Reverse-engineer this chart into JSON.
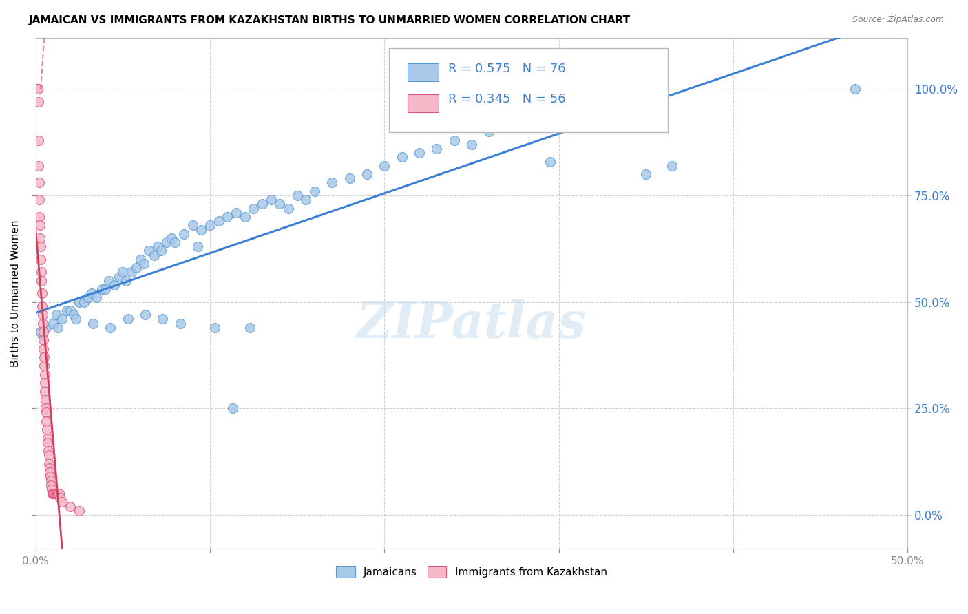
{
  "title": "JAMAICAN VS IMMIGRANTS FROM KAZAKHSTAN BIRTHS TO UNMARRIED WOMEN CORRELATION CHART",
  "source": "Source: ZipAtlas.com",
  "ylabel_left": "Births to Unmarried Women",
  "y_tick_values": [
    0,
    25,
    50,
    75,
    100
  ],
  "xlim": [
    0,
    50
  ],
  "ylim": [
    -8,
    112
  ],
  "blue_R": 0.575,
  "blue_N": 76,
  "pink_R": 0.345,
  "pink_N": 56,
  "legend_label_blue": "Jamaicans",
  "legend_label_pink": "Immigrants from Kazakhstan",
  "blue_dot_color": "#a8c8e8",
  "blue_dot_edge": "#5b9bd5",
  "pink_dot_color": "#f4b8c8",
  "pink_dot_edge": "#e05080",
  "blue_line_color": "#3a7fd5",
  "pink_line_color": "#d0405a",
  "right_tick_color": "#3a7fd5",
  "watermark": "ZIPatlas",
  "blue_x": [
    0.4,
    0.6,
    1.0,
    1.2,
    1.5,
    1.8,
    2.0,
    2.2,
    2.5,
    2.8,
    3.0,
    3.2,
    3.5,
    3.8,
    4.0,
    4.2,
    4.5,
    4.8,
    5.0,
    5.2,
    5.5,
    5.8,
    6.0,
    6.2,
    6.5,
    6.8,
    7.0,
    7.2,
    7.5,
    7.8,
    8.0,
    8.5,
    9.0,
    9.5,
    10.0,
    10.5,
    11.0,
    11.5,
    12.0,
    12.5,
    13.0,
    13.5,
    14.0,
    14.5,
    15.0,
    15.5,
    16.0,
    17.0,
    18.0,
    19.0,
    20.0,
    21.0,
    22.0,
    23.0,
    24.0,
    25.0,
    26.0,
    27.0,
    28.0,
    29.5,
    35.0,
    36.5,
    47.0,
    0.3,
    1.3,
    2.3,
    3.3,
    4.3,
    5.3,
    6.3,
    7.3,
    8.3,
    9.3,
    10.3,
    11.3,
    12.3
  ],
  "blue_y": [
    42,
    44,
    45,
    47,
    46,
    48,
    48,
    47,
    50,
    50,
    51,
    52,
    51,
    53,
    53,
    55,
    54,
    56,
    57,
    55,
    57,
    58,
    60,
    59,
    62,
    61,
    63,
    62,
    64,
    65,
    64,
    66,
    68,
    67,
    68,
    69,
    70,
    71,
    70,
    72,
    73,
    74,
    73,
    72,
    75,
    74,
    76,
    78,
    79,
    80,
    82,
    84,
    85,
    86,
    88,
    87,
    90,
    91,
    92,
    83,
    80,
    82,
    100,
    43,
    44,
    46,
    45,
    44,
    46,
    47,
    46,
    45,
    63,
    44,
    25,
    44
  ],
  "pink_x": [
    0.15,
    0.15,
    0.17,
    0.18,
    0.19,
    0.2,
    0.22,
    0.23,
    0.25,
    0.27,
    0.28,
    0.3,
    0.32,
    0.35,
    0.37,
    0.38,
    0.4,
    0.42,
    0.44,
    0.45,
    0.47,
    0.48,
    0.5,
    0.52,
    0.53,
    0.55,
    0.57,
    0.58,
    0.6,
    0.62,
    0.65,
    0.68,
    0.7,
    0.72,
    0.75,
    0.78,
    0.8,
    0.82,
    0.85,
    0.87,
    0.9,
    0.92,
    0.95,
    0.97,
    1.0,
    1.05,
    1.1,
    1.15,
    1.2,
    1.25,
    1.3,
    1.35,
    1.4,
    1.5,
    2.0,
    2.5
  ],
  "pink_y": [
    100,
    100,
    97,
    88,
    82,
    78,
    74,
    70,
    68,
    65,
    63,
    60,
    57,
    55,
    52,
    49,
    47,
    45,
    43,
    41,
    39,
    37,
    35,
    33,
    31,
    29,
    27,
    25,
    24,
    22,
    20,
    18,
    17,
    15,
    14,
    12,
    11,
    10,
    9,
    8,
    7,
    6,
    5,
    5,
    5,
    5,
    5,
    5,
    5,
    5,
    5,
    5,
    4,
    3,
    2,
    1
  ]
}
